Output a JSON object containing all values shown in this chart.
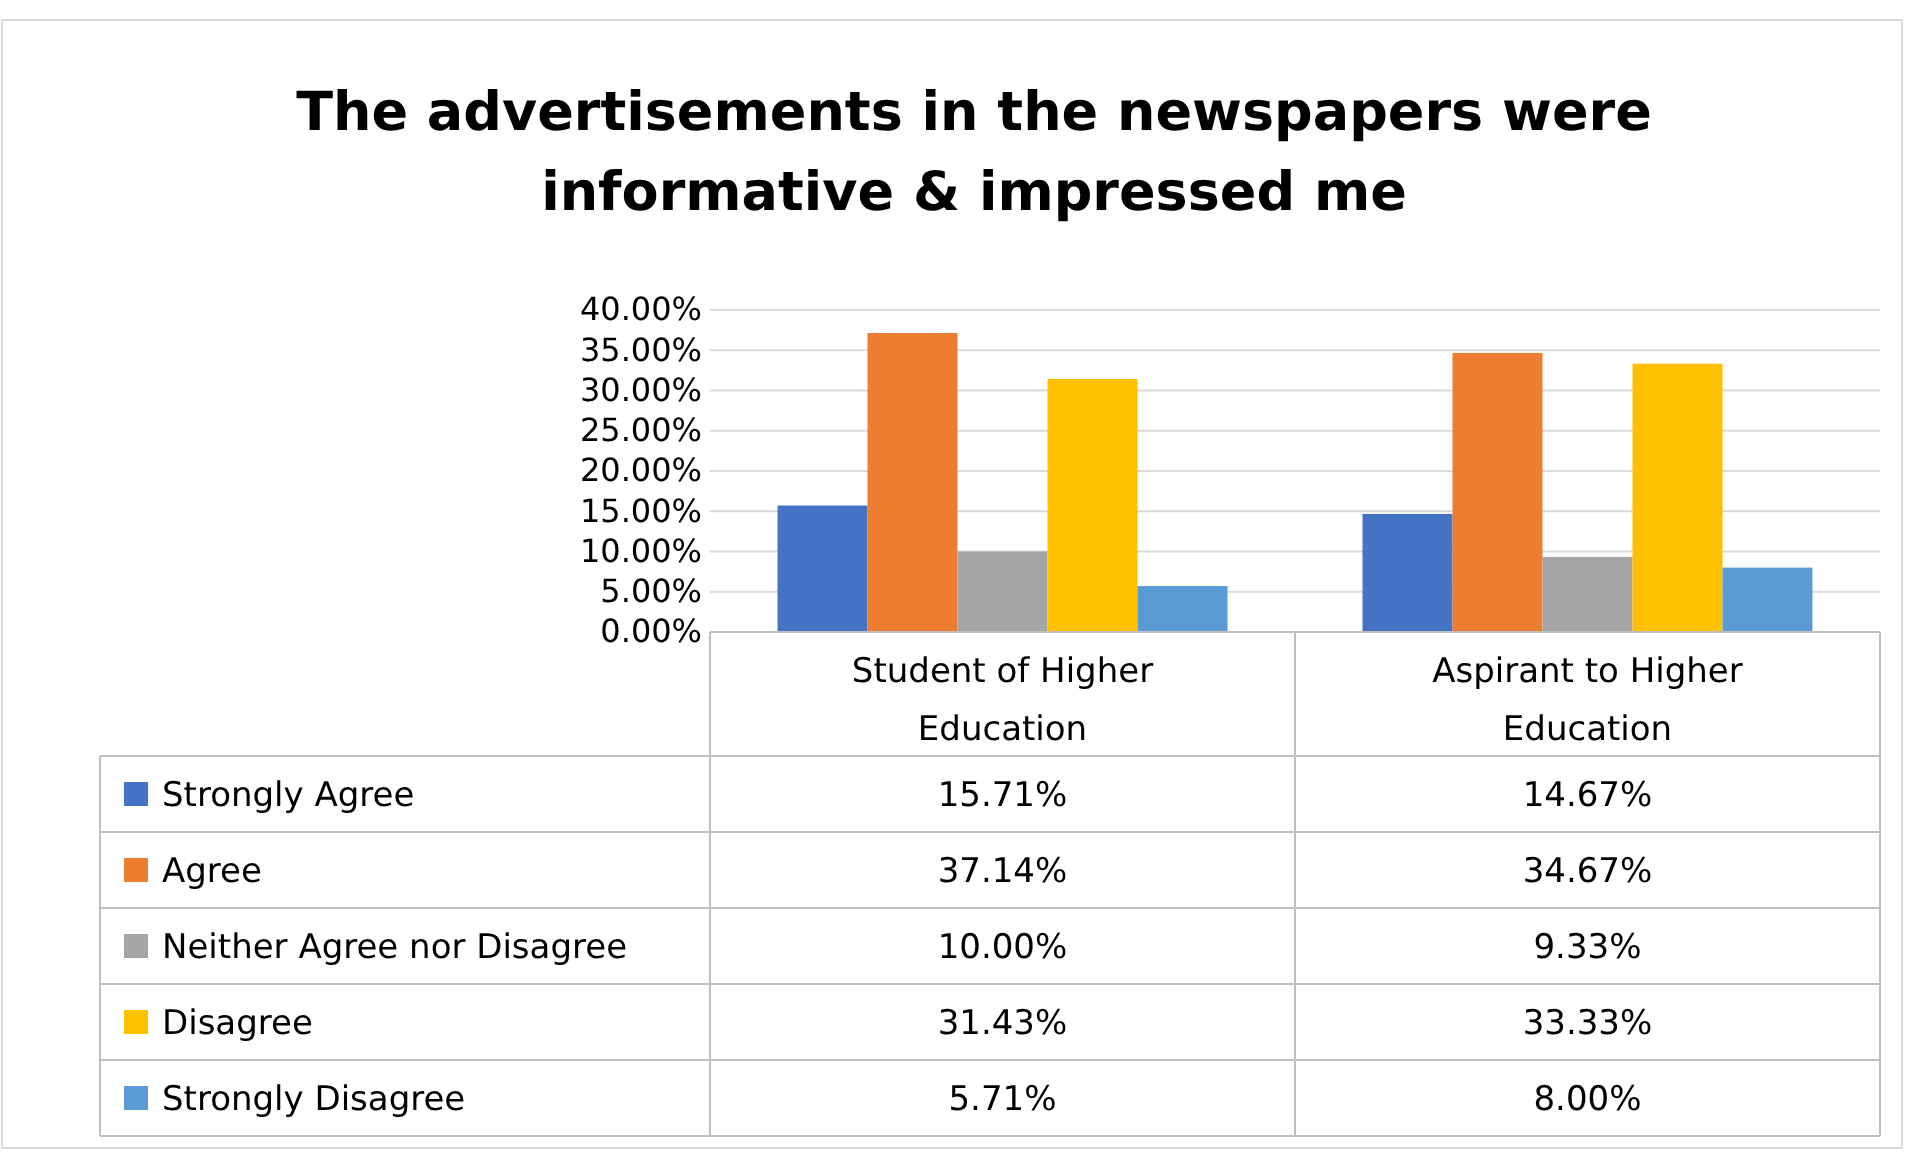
{
  "chart_data": {
    "type": "bar",
    "title": "The advertisements in the newspapers were informative & impressed me",
    "categories": [
      "Student of Higher Education",
      "Aspirant to Higher Education"
    ],
    "series": [
      {
        "name": "Strongly Agree",
        "color": "#4472c4",
        "values": [
          15.71,
          14.67
        ],
        "value_labels": [
          "15.71%",
          "14.67%"
        ]
      },
      {
        "name": "Agree",
        "color": "#ed7d31",
        "values": [
          37.14,
          34.67
        ],
        "value_labels": [
          "37.14%",
          "34.67%"
        ]
      },
      {
        "name": "Neither Agree nor Disagree",
        "color": "#a5a5a5",
        "values": [
          10.0,
          9.33
        ],
        "value_labels": [
          "10.00%",
          "9.33%"
        ]
      },
      {
        "name": "Disagree",
        "color": "#ffc000",
        "values": [
          31.43,
          33.33
        ],
        "value_labels": [
          "31.43%",
          "33.33%"
        ]
      },
      {
        "name": "Strongly Disagree",
        "color": "#5b9bd5",
        "values": [
          5.71,
          8.0
        ],
        "value_labels": [
          "5.71%",
          "8.00%"
        ]
      }
    ],
    "ylim": [
      0,
      40
    ],
    "yticks": [
      {
        "value": 0,
        "label": "0.00%"
      },
      {
        "value": 5,
        "label": "5.00%"
      },
      {
        "value": 10,
        "label": "10.00%"
      },
      {
        "value": 15,
        "label": "15.00%"
      },
      {
        "value": 20,
        "label": "20.00%"
      },
      {
        "value": 25,
        "label": "25.00%"
      },
      {
        "value": 30,
        "label": "30.00%"
      },
      {
        "value": 35,
        "label": "35.00%"
      },
      {
        "value": 40,
        "label": "40.00%"
      }
    ],
    "grid": "y",
    "legend": "bottom"
  }
}
